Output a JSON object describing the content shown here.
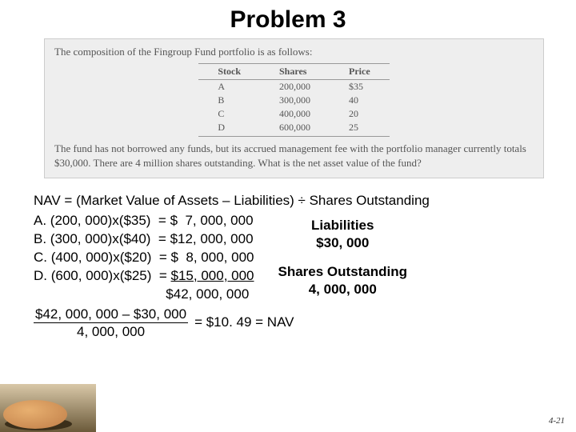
{
  "title": "Problem 3",
  "problem": {
    "intro": "The composition of the Fingroup Fund portfolio is as follows:",
    "table": {
      "headers": [
        "Stock",
        "Shares",
        "Price"
      ],
      "rows": [
        [
          "A",
          "200,000",
          "$35"
        ],
        [
          "B",
          "300,000",
          "40"
        ],
        [
          "C",
          "400,000",
          "20"
        ],
        [
          "D",
          "600,000",
          "25"
        ]
      ]
    },
    "body": "The fund has not borrowed any funds, but its accrued management fee with the portfolio manager currently totals $30,000. There are 4 million shares outstanding. What is the net asset value of the fund?"
  },
  "solution": {
    "formula": "NAV = (Market Value of Assets – Liabilities) ÷ Shares Outstanding",
    "lines": [
      "A. (200, 000)x($35)  = $  7, 000, 000",
      "B. (300, 000)x($40)  = $12, 000, 000",
      "C. (400, 000)x($20)  = $  8, 000, 000",
      "D. (600, 000)x($25)  = $15, 000, 000",
      "                                   $42, 000, 000"
    ],
    "underline_index": 3,
    "right": {
      "liab_label": "Liabilities",
      "liab_value": "$30, 000",
      "shares_label": "Shares Outstanding",
      "shares_value": "4, 000, 000"
    },
    "final": {
      "numerator": "$42, 000, 000 – $30, 000",
      "denominator": "4, 000, 000",
      "result": "  =  $10. 49 = NAV"
    }
  },
  "page_number": "4-21",
  "decor": {
    "bg_gradient_top": "#d9c8a8",
    "bg_gradient_bottom": "#6b5a3a",
    "stone_color": "#c88850",
    "stone_shadow": "#3b2f1a"
  }
}
